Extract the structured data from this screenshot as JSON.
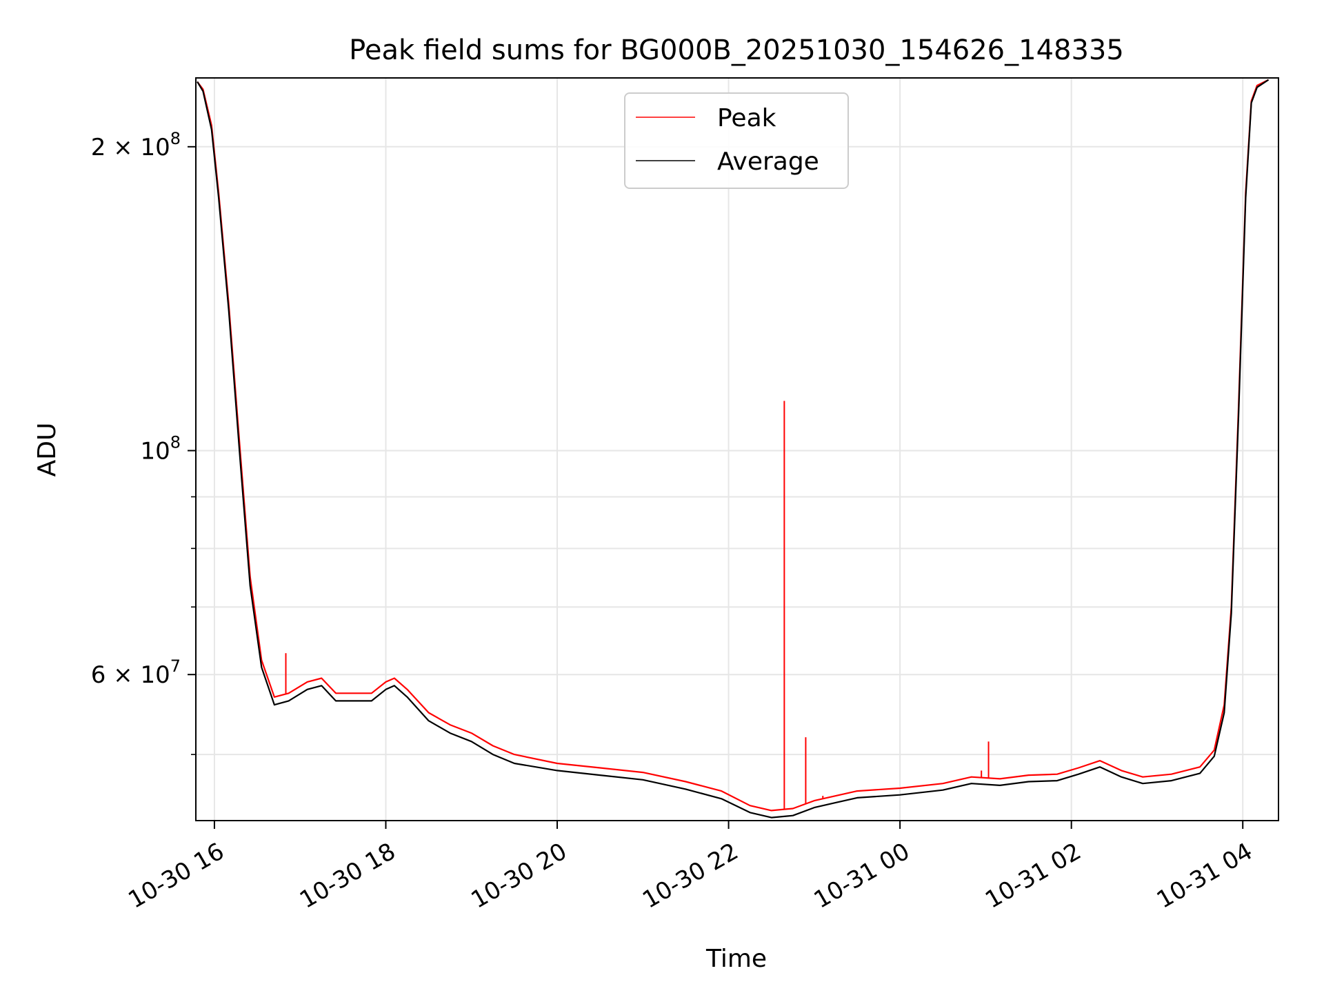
{
  "chart_data": {
    "type": "line",
    "title": "Peak field sums for BG000B_20251030_154626_148335",
    "xlabel": "Time",
    "ylabel": "ADU",
    "yscale": "log",
    "ylim": [
      43000000,
      234000000
    ],
    "xlim": [
      "2025-10-30 15:47",
      "2025-10-31 04:25"
    ],
    "grid": true,
    "legend": "upper center",
    "x_ticks": [
      {
        "t": "2025-10-30 16:00",
        "label": "10-30 16"
      },
      {
        "t": "2025-10-30 18:00",
        "label": "10-30 18"
      },
      {
        "t": "2025-10-30 20:00",
        "label": "10-30 20"
      },
      {
        "t": "2025-10-30 22:00",
        "label": "10-30 22"
      },
      {
        "t": "2025-10-31 00:00",
        "label": "10-31 00"
      },
      {
        "t": "2025-10-31 02:00",
        "label": "10-31 02"
      },
      {
        "t": "2025-10-31 04:00",
        "label": "10-31 04"
      }
    ],
    "y_ticks": [
      {
        "value": 200000000,
        "base": "2 × 10",
        "exp": "8"
      },
      {
        "value": 100000000,
        "base": "10",
        "exp": "8"
      },
      {
        "value": 60000000,
        "base": "6 × 10",
        "exp": "7"
      }
    ],
    "y_minor_ticks": [
      50000000,
      70000000,
      80000000,
      90000000
    ],
    "series": [
      {
        "name": "Peak",
        "color": "#ff0000",
        "x": [
          "2025-10-30 15:48",
          "2025-10-30 15:52",
          "2025-10-30 15:58",
          "2025-10-30 16:03",
          "2025-10-30 16:10",
          "2025-10-30 16:18",
          "2025-10-30 16:25",
          "2025-10-30 16:33",
          "2025-10-30 16:42",
          "2025-10-30 16:52",
          "2025-10-30 17:05",
          "2025-10-30 17:15",
          "2025-10-30 17:25",
          "2025-10-30 17:35",
          "2025-10-30 17:50",
          "2025-10-30 18:00",
          "2025-10-30 18:06",
          "2025-10-30 18:15",
          "2025-10-30 18:30",
          "2025-10-30 18:45",
          "2025-10-30 19:00",
          "2025-10-30 19:15",
          "2025-10-30 19:30",
          "2025-10-30 20:00",
          "2025-10-30 20:30",
          "2025-10-30 21:00",
          "2025-10-30 21:30",
          "2025-10-30 21:55",
          "2025-10-30 22:15",
          "2025-10-30 22:30",
          "2025-10-30 22:45",
          "2025-10-30 23:00",
          "2025-10-30 23:15",
          "2025-10-30 23:30",
          "2025-10-31 00:00",
          "2025-10-31 00:30",
          "2025-10-31 00:50",
          "2025-10-31 01:10",
          "2025-10-31 01:30",
          "2025-10-31 01:50",
          "2025-10-31 02:05",
          "2025-10-31 02:20",
          "2025-10-31 02:35",
          "2025-10-31 02:50",
          "2025-10-31 03:10",
          "2025-10-31 03:30",
          "2025-10-31 03:40",
          "2025-10-31 03:47",
          "2025-10-31 03:52",
          "2025-10-31 03:57",
          "2025-10-31 04:02",
          "2025-10-31 04:06",
          "2025-10-31 04:10",
          "2025-10-31 04:18"
        ],
        "y": [
          232000000,
          228000000,
          210000000,
          180000000,
          140000000,
          100000000,
          75000000,
          62000000,
          57000000,
          57500000,
          59000000,
          59500000,
          57500000,
          57500000,
          57500000,
          59000000,
          59500000,
          58000000,
          55000000,
          53500000,
          52500000,
          51000000,
          50000000,
          49000000,
          48500000,
          48000000,
          47000000,
          46000000,
          44500000,
          44000000,
          44200000,
          45000000,
          45500000,
          46000000,
          46300000,
          46800000,
          47500000,
          47300000,
          47700000,
          47800000,
          48500000,
          49300000,
          48200000,
          47500000,
          47800000,
          48600000,
          50500000,
          56000000,
          70000000,
          110000000,
          180000000,
          222000000,
          230000000,
          233000000
        ],
        "spikes": [
          {
            "t": "2025-10-30 16:50",
            "y": 63000000
          },
          {
            "t": "2025-10-30 22:39",
            "y": 112000000
          },
          {
            "t": "2025-10-30 22:54",
            "y": 52000000
          },
          {
            "t": "2025-10-30 23:06",
            "y": 45500000
          },
          {
            "t": "2025-10-31 00:57",
            "y": 48200000
          },
          {
            "t": "2025-10-31 01:02",
            "y": 51500000
          }
        ]
      },
      {
        "name": "Average",
        "color": "#000000",
        "x": [
          "2025-10-30 15:48",
          "2025-10-30 15:52",
          "2025-10-30 15:58",
          "2025-10-30 16:03",
          "2025-10-30 16:10",
          "2025-10-30 16:18",
          "2025-10-30 16:25",
          "2025-10-30 16:33",
          "2025-10-30 16:42",
          "2025-10-30 16:52",
          "2025-10-30 17:05",
          "2025-10-30 17:15",
          "2025-10-30 17:25",
          "2025-10-30 17:35",
          "2025-10-30 17:50",
          "2025-10-30 18:00",
          "2025-10-30 18:06",
          "2025-10-30 18:15",
          "2025-10-30 18:30",
          "2025-10-30 18:45",
          "2025-10-30 19:00",
          "2025-10-30 19:15",
          "2025-10-30 19:30",
          "2025-10-30 20:00",
          "2025-10-30 20:30",
          "2025-10-30 21:00",
          "2025-10-30 21:30",
          "2025-10-30 21:55",
          "2025-10-30 22:15",
          "2025-10-30 22:30",
          "2025-10-30 22:45",
          "2025-10-30 23:00",
          "2025-10-30 23:15",
          "2025-10-30 23:30",
          "2025-10-31 00:00",
          "2025-10-31 00:30",
          "2025-10-31 00:50",
          "2025-10-31 01:10",
          "2025-10-31 01:30",
          "2025-10-31 01:50",
          "2025-10-31 02:05",
          "2025-10-31 02:20",
          "2025-10-31 02:35",
          "2025-10-31 02:50",
          "2025-10-31 03:10",
          "2025-10-31 03:30",
          "2025-10-31 03:40",
          "2025-10-31 03:47",
          "2025-10-31 03:52",
          "2025-10-31 03:57",
          "2025-10-31 04:02",
          "2025-10-31 04:06",
          "2025-10-31 04:10",
          "2025-10-31 04:18"
        ],
        "y": [
          232000000,
          227000000,
          208000000,
          178000000,
          138000000,
          98000000,
          73500000,
          61000000,
          56000000,
          56500000,
          58000000,
          58500000,
          56500000,
          56500000,
          56500000,
          58000000,
          58500000,
          57000000,
          54000000,
          52500000,
          51500000,
          50000000,
          49000000,
          48200000,
          47700000,
          47200000,
          46200000,
          45200000,
          43800000,
          43300000,
          43500000,
          44300000,
          44800000,
          45300000,
          45600000,
          46100000,
          46800000,
          46600000,
          47000000,
          47100000,
          47800000,
          48600000,
          47500000,
          46800000,
          47100000,
          47900000,
          49800000,
          55000000,
          69000000,
          108000000,
          178000000,
          221000000,
          229000000,
          233000000
        ],
        "spikes": []
      }
    ]
  }
}
